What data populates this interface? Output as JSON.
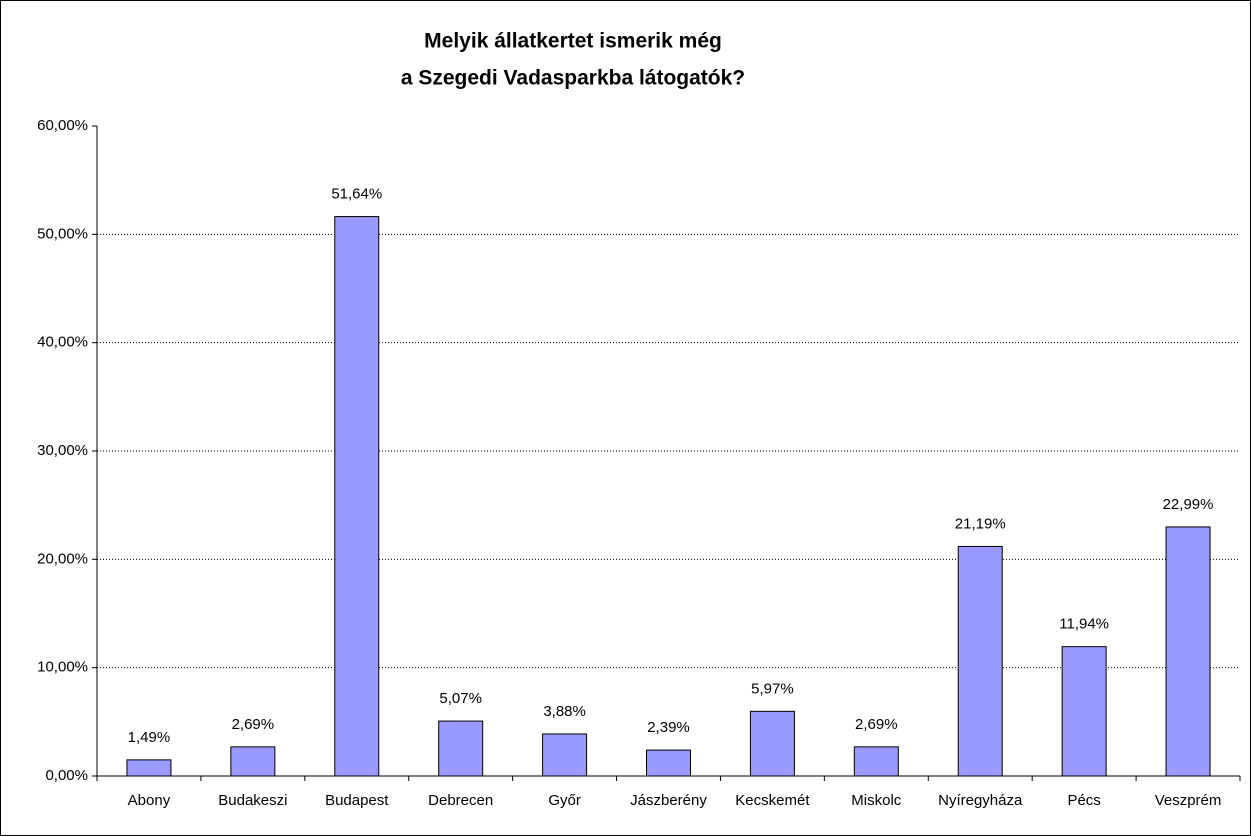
{
  "chart_data": {
    "type": "bar",
    "title": [
      "Melyik állatkertet ismerik még",
      "a Szegedi Vadasparkba látogatók?"
    ],
    "categories": [
      "Abony",
      "Budakeszi",
      "Budapest",
      "Debrecen",
      "Győr",
      "Jászberény",
      "Kecskemét",
      "Miskolc",
      "Nyíregyháza",
      "Pécs",
      "Veszprém"
    ],
    "values": [
      1.49,
      2.69,
      51.64,
      5.07,
      3.88,
      2.39,
      5.97,
      2.69,
      21.19,
      11.94,
      22.99
    ],
    "value_labels": [
      "1,49%",
      "2,69%",
      "51,64%",
      "5,07%",
      "3,88%",
      "2,39%",
      "5,97%",
      "2,69%",
      "21,19%",
      "11,94%",
      "22,99%"
    ],
    "color": "#9999ff",
    "ylim": [
      0,
      60
    ],
    "yticks": [
      {
        "value": 0,
        "label": "0,00%"
      },
      {
        "value": 10,
        "label": "10,00%"
      },
      {
        "value": 20,
        "label": "20,00%"
      },
      {
        "value": 30,
        "label": "30,00%"
      },
      {
        "value": 40,
        "label": "40,00%"
      },
      {
        "value": 50,
        "label": "50,00%"
      },
      {
        "value": 60,
        "label": "60,00%"
      }
    ],
    "grid": true
  }
}
